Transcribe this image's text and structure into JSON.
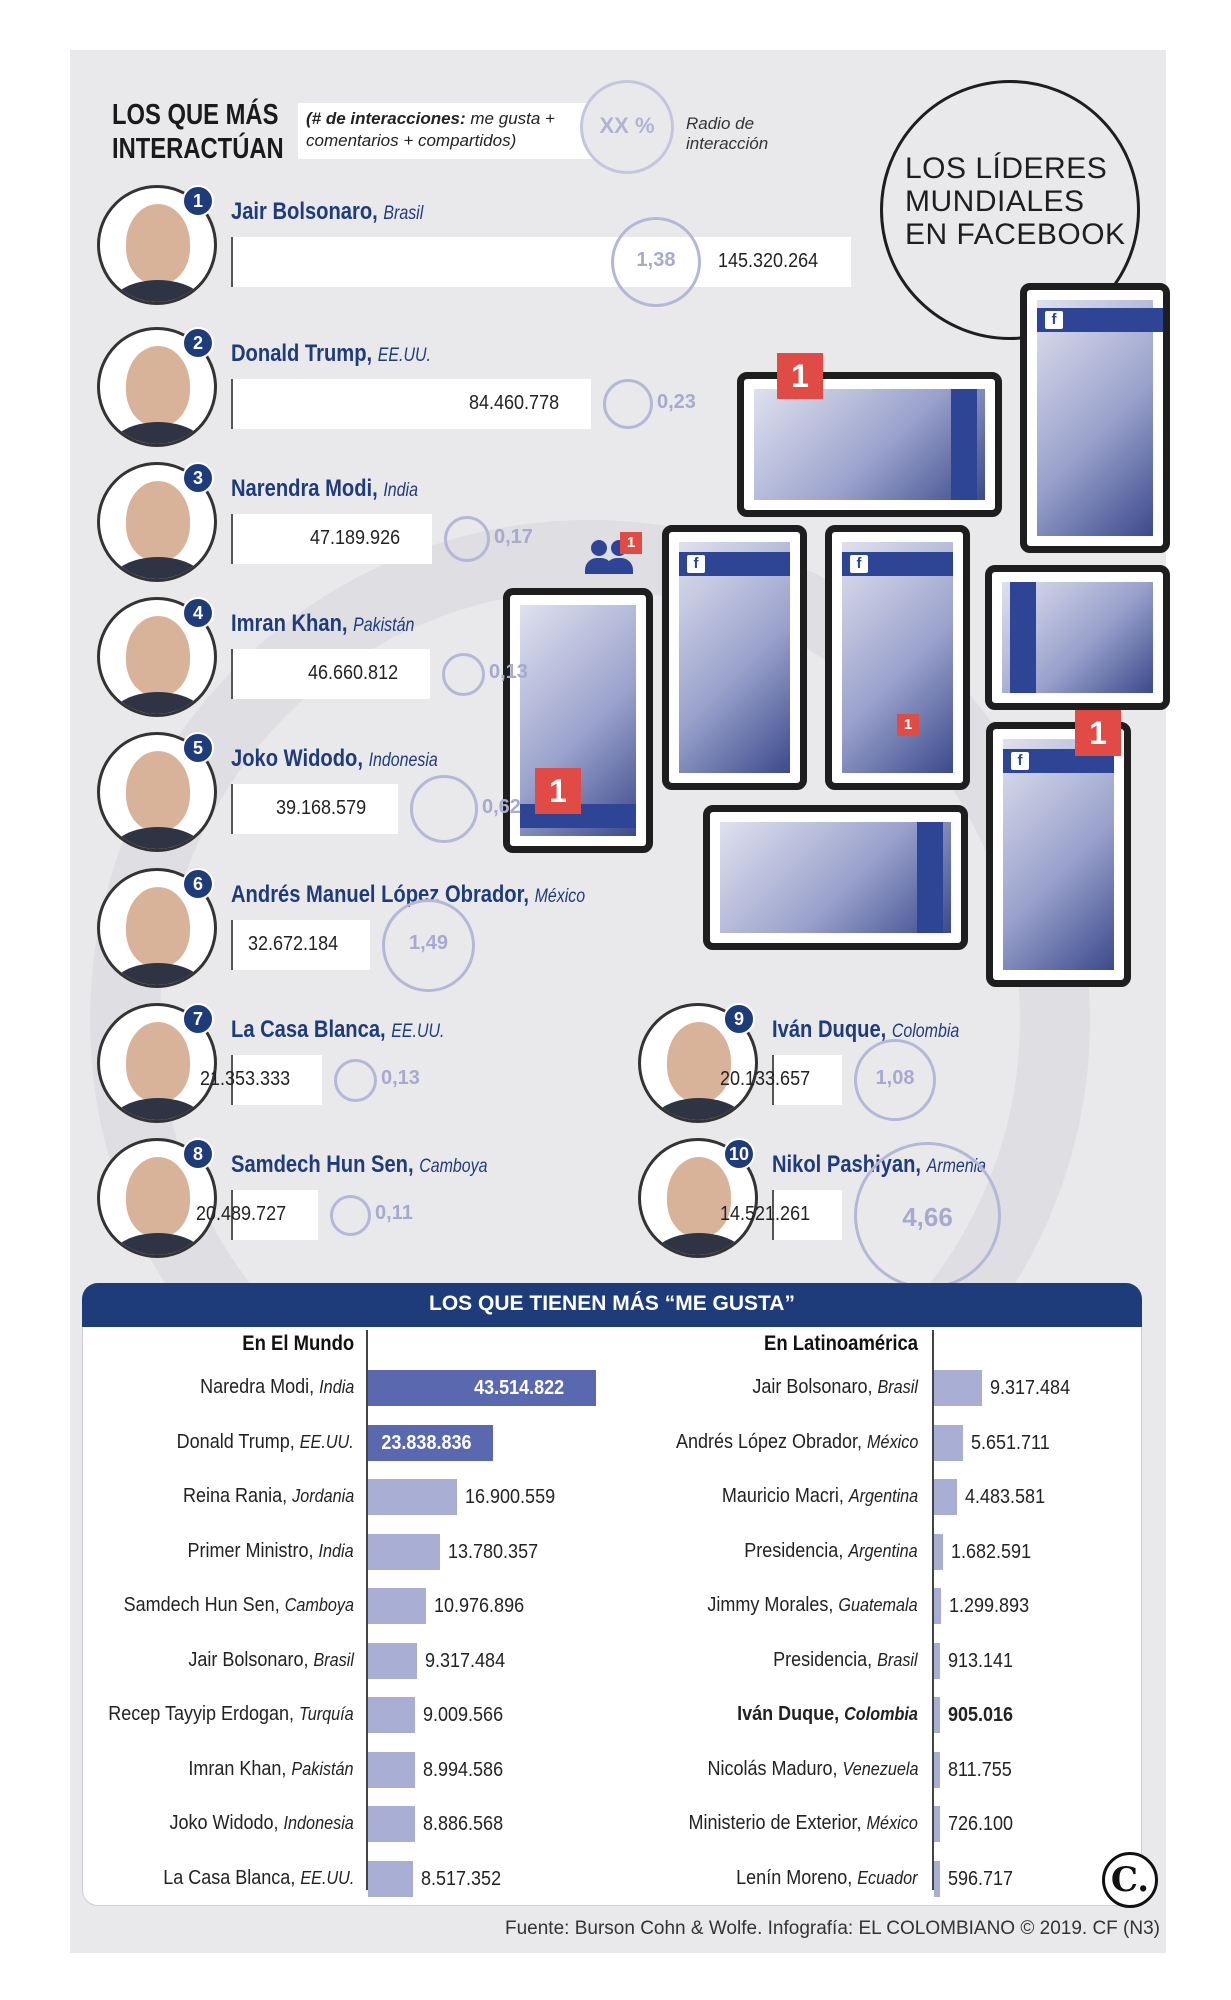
{
  "header": {
    "title_line1": "LOS QUE MÁS",
    "title_line2": "INTERACTÚAN",
    "legend_bold": "(# de interacciones:",
    "legend_rest": " me gusta + comentarios + compartidos)",
    "legend_circle": "XX %",
    "legend_radio": "Radio de interacción",
    "big_title_1": "LOS LÍDERES",
    "big_title_2": "MUNDIALES",
    "big_title_3": "EN FACEBOOK"
  },
  "chart_data": [
    {
      "type": "bar",
      "title": "LOS QUE MÁS INTERACTÚAN",
      "categories": [
        "Jair Bolsonaro, Brasil",
        "Donald Trump, EE.UU.",
        "Narendra Modi, India",
        "Imran Khan, Pakistán",
        "Joko Widodo, Indonesia",
        "Andrés Manuel López Obrador, México",
        "La Casa Blanca, EE.UU.",
        "Samdech Hun Sen, Camboya",
        "Iván Duque, Colombia",
        "Nikol Pashiyan, Armenia"
      ],
      "series": [
        {
          "values": [
            145320264,
            84460778,
            47189926,
            46660812,
            39168579,
            32672184,
            21353333,
            20489727,
            20133657,
            14521261
          ]
        },
        {
          "values": [
            1.38,
            0.23,
            0.17,
            0.13,
            0.62,
            1.49,
            0.13,
            0.11,
            1.08,
            4.66
          ]
        }
      ],
      "people": [
        {
          "rank": "1",
          "name": "Jair Bolsonaro,",
          "country": "Brasil",
          "value": 145320264,
          "value_label": "145.320.264",
          "ratio": 1.38,
          "ratio_label": "1,38"
        },
        {
          "rank": "2",
          "name": "Donald Trump,",
          "country": "EE.UU.",
          "value": 84460778,
          "value_label": "84.460.778",
          "ratio": 0.23,
          "ratio_label": "0,23"
        },
        {
          "rank": "3",
          "name": "Narendra Modi,",
          "country": "India",
          "value": 47189926,
          "value_label": "47.189.926",
          "ratio": 0.17,
          "ratio_label": "0,17"
        },
        {
          "rank": "4",
          "name": "Imran Khan,",
          "country": "Pakistán",
          "value": 46660812,
          "value_label": "46.660.812",
          "ratio": 0.13,
          "ratio_label": "0,13"
        },
        {
          "rank": "5",
          "name": "Joko Widodo,",
          "country": "Indonesia",
          "value": 39168579,
          "value_label": "39.168.579",
          "ratio": 0.62,
          "ratio_label": "0,62"
        },
        {
          "rank": "6",
          "name": "Andrés Manuel López Obrador,",
          "country": "México",
          "value": 32672184,
          "value_label": "32.672.184",
          "ratio": 1.49,
          "ratio_label": "1,49"
        },
        {
          "rank": "7",
          "name": "La Casa Blanca,",
          "country": "EE.UU.",
          "value": 21353333,
          "value_label": "21.353.333",
          "ratio": 0.13,
          "ratio_label": "0,13"
        },
        {
          "rank": "8",
          "name": "Samdech Hun Sen,",
          "country": "Camboya",
          "value": 20489727,
          "value_label": "20.489.727",
          "ratio": 0.11,
          "ratio_label": "0,11"
        },
        {
          "rank": "9",
          "name": "Iván Duque,",
          "country": "Colombia",
          "value": 20133657,
          "value_label": "20.133.657",
          "ratio": 1.08,
          "ratio_label": "1,08"
        },
        {
          "rank": "10",
          "name": "Nikol Pashiyan,",
          "country": "Armenia",
          "value": 14521261,
          "value_label": "14.521.261",
          "ratio": 4.66,
          "ratio_label": "4,66"
        }
      ]
    },
    {
      "type": "bar",
      "title": "LOS QUE TIENEN MÁS “ME GUSTA”",
      "subtitle": "En El Mundo",
      "categories": [
        "Naredra Modi, India",
        "Donald Trump, EE.UU.",
        "Reina Rania, Jordania",
        "Primer Ministro, India",
        "Samdech Hun Sen, Camboya",
        "Jair Bolsonaro, Brasil",
        "Recep Tayyip Erdogan, Turquía",
        "Imran Khan, Pakistán",
        "Joko Widodo, Indonesia",
        "La Casa Blanca, EE.UU."
      ],
      "values": [
        43514822,
        23838836,
        16900559,
        13780357,
        10976896,
        9317484,
        9009566,
        8994586,
        8886568,
        8517352
      ],
      "rows": [
        {
          "name": "Naredra Modi,",
          "country": "India",
          "value": 43514822,
          "label": "43.514.822"
        },
        {
          "name": "Donald Trump,",
          "country": "EE.UU.",
          "value": 23838836,
          "label": "23.838.836"
        },
        {
          "name": "Reina Rania,",
          "country": "Jordania",
          "value": 16900559,
          "label": "16.900.559"
        },
        {
          "name": "Primer Ministro,",
          "country": "India",
          "value": 13780357,
          "label": "13.780.357"
        },
        {
          "name": "Samdech Hun Sen,",
          "country": "Camboya",
          "value": 10976896,
          "label": "10.976.896"
        },
        {
          "name": "Jair Bolsonaro,",
          "country": "Brasil",
          "value": 9317484,
          "label": "9.317.484"
        },
        {
          "name": "Recep Tayyip Erdogan,",
          "country": "Turquía",
          "value": 9009566,
          "label": "9.009.566"
        },
        {
          "name": "Imran Khan,",
          "country": "Pakistán",
          "value": 8994586,
          "label": "8.994.586"
        },
        {
          "name": "Joko Widodo,",
          "country": "Indonesia",
          "value": 8886568,
          "label": "8.886.568"
        },
        {
          "name": "La Casa Blanca,",
          "country": "EE.UU.",
          "value": 8517352,
          "label": "8.517.352"
        }
      ]
    },
    {
      "type": "bar",
      "title": "LOS QUE TIENEN MÁS “ME GUSTA”",
      "subtitle": "En Latinoamérica",
      "categories": [
        "Jair Bolsonaro, Brasil",
        "Andrés López Obrador, México",
        "Mauricio Macri, Argentina",
        "Presidencia, Argentina",
        "Jimmy Morales, Guatemala",
        "Presidencia, Brasil",
        "Iván Duque, Colombia",
        "Nicolás Maduro, Venezuela",
        "Ministerio de Exterior, México",
        "Lenín Moreno, Ecuador"
      ],
      "values": [
        9317484,
        5651711,
        4483581,
        1682591,
        1299893,
        913141,
        905016,
        811755,
        726100,
        596717
      ],
      "rows": [
        {
          "name": "Jair Bolsonaro,",
          "country": "Brasil",
          "value": 9317484,
          "label": "9.317.484"
        },
        {
          "name": "Andrés López Obrador,",
          "country": "México",
          "value": 5651711,
          "label": "5.651.711"
        },
        {
          "name": "Mauricio Macri,",
          "country": "Argentina",
          "value": 4483581,
          "label": "4.483.581"
        },
        {
          "name": "Presidencia,",
          "country": "Argentina",
          "value": 1682591,
          "label": "1.682.591"
        },
        {
          "name": "Jimmy Morales,",
          "country": "Guatemala",
          "value": 1299893,
          "label": "1.299.893"
        },
        {
          "name": "Presidencia,",
          "country": "Brasil",
          "value": 913141,
          "label": "913.141"
        },
        {
          "name": "Iván Duque,",
          "country": "Colombia",
          "value": 905016,
          "label": "905.016",
          "highlight": true
        },
        {
          "name": "Nicolás Maduro,",
          "country": "Venezuela",
          "value": 811755,
          "label": "811.755"
        },
        {
          "name": "Ministerio de Exterior,",
          "country": "México",
          "value": 726100,
          "label": "726.100"
        },
        {
          "name": "Lenín Moreno,",
          "country": "Ecuador",
          "value": 596717,
          "label": "596.717"
        }
      ]
    }
  ],
  "bottom": {
    "title": "LOS QUE TIENEN MÁS “ME GUSTA”",
    "world_head": "En El Mundo",
    "latam_head": "En Latinoamérica"
  },
  "notifications": [
    "1",
    "1",
    "1",
    "1",
    "1"
  ],
  "fb_glyph": "f",
  "logo": "C.",
  "source": "Fuente: Burson Cohn & Wolfe. Infografía: EL COLOMBIANO © 2019. CF (N3)",
  "colors": {
    "accent": "#1f3c7a",
    "bar_light": "#a9aed5",
    "bar_dark": "#5a68b0",
    "ratio_circle": "#b5b7d8",
    "notification": "#e04b46",
    "facebook": "#2e4596"
  }
}
